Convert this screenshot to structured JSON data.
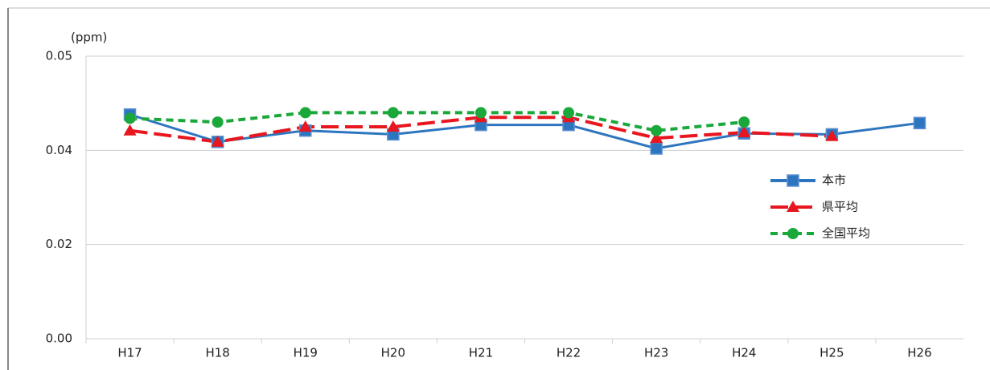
{
  "chart_data": {
    "type": "line",
    "y_label": "(ppm)",
    "categories": [
      "H17",
      "H18",
      "H19",
      "H20",
      "H21",
      "H22",
      "H23",
      "H24",
      "H25",
      "H26"
    ],
    "series": [
      {
        "name": "本市",
        "color": "#2e75c0",
        "marker": "square",
        "dash": "solid",
        "values": [
          0.0438,
          0.0409,
          0.0421,
          0.0417,
          0.0427,
          0.0427,
          0.0402,
          0.0418,
          0.0417,
          0.0429
        ]
      },
      {
        "name": "県平均",
        "color": "#e8161e",
        "marker": "triangle",
        "dash": "long",
        "values": [
          0.0421,
          0.0409,
          0.0425,
          0.0425,
          0.0435,
          0.0435,
          0.0413,
          0.0419,
          0.0415,
          null
        ]
      },
      {
        "name": "全国平均",
        "color": "#1aa83a",
        "marker": "circle",
        "dash": "short",
        "values": [
          0.0434,
          0.043,
          0.044,
          0.044,
          0.044,
          0.044,
          0.0421,
          0.043,
          null,
          null
        ]
      }
    ],
    "ylim": [
      0,
      0.05
    ],
    "yticks": [
      {
        "value": 0,
        "label": "0.00"
      },
      {
        "value": 0.02,
        "label": "0.02"
      },
      {
        "value": 0.04,
        "label": "0.04"
      },
      {
        "value": 0.05,
        "label": "0.05"
      }
    ],
    "grid": true,
    "legend": "right"
  }
}
